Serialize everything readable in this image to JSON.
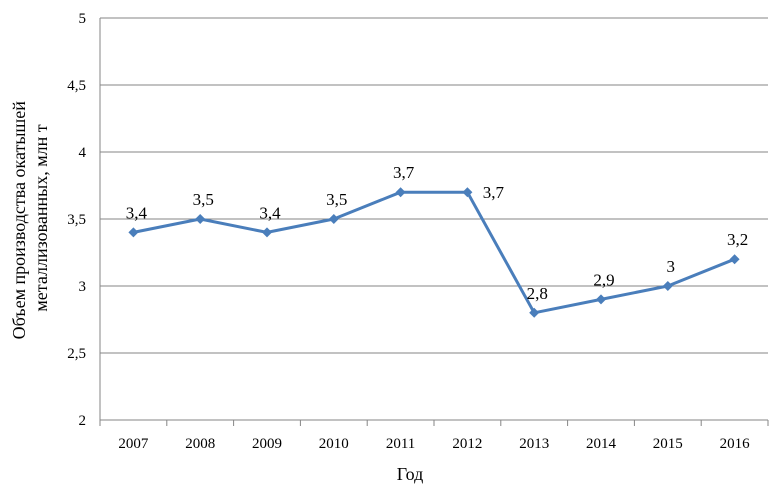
{
  "chart_data": {
    "type": "line",
    "xlabel": "Год",
    "ylabel": [
      "Объем производства окатышей",
      "металлизованных, млн т"
    ],
    "categories": [
      "2007",
      "2008",
      "2009",
      "2010",
      "2011",
      "2012",
      "2013",
      "2014",
      "2015",
      "2016"
    ],
    "series": [
      {
        "values": [
          3.4,
          3.5,
          3.4,
          3.5,
          3.7,
          3.7,
          2.8,
          2.9,
          3.0,
          3.2
        ],
        "labels": [
          "3,4",
          "3,5",
          "3,4",
          "3,5",
          "3,7",
          "3,7",
          "2,8",
          "2,9",
          "3",
          "3,2"
        ],
        "color": "#4A7EBB"
      }
    ],
    "ylim": [
      2,
      5
    ],
    "yticks": [
      2,
      2.5,
      3,
      3.5,
      4,
      4.5,
      5
    ],
    "ytick_labels": [
      "2",
      "2,5",
      "3",
      "3,5",
      "4",
      "4,5",
      "5"
    ],
    "grid": true,
    "gridline_color": "#868686"
  }
}
